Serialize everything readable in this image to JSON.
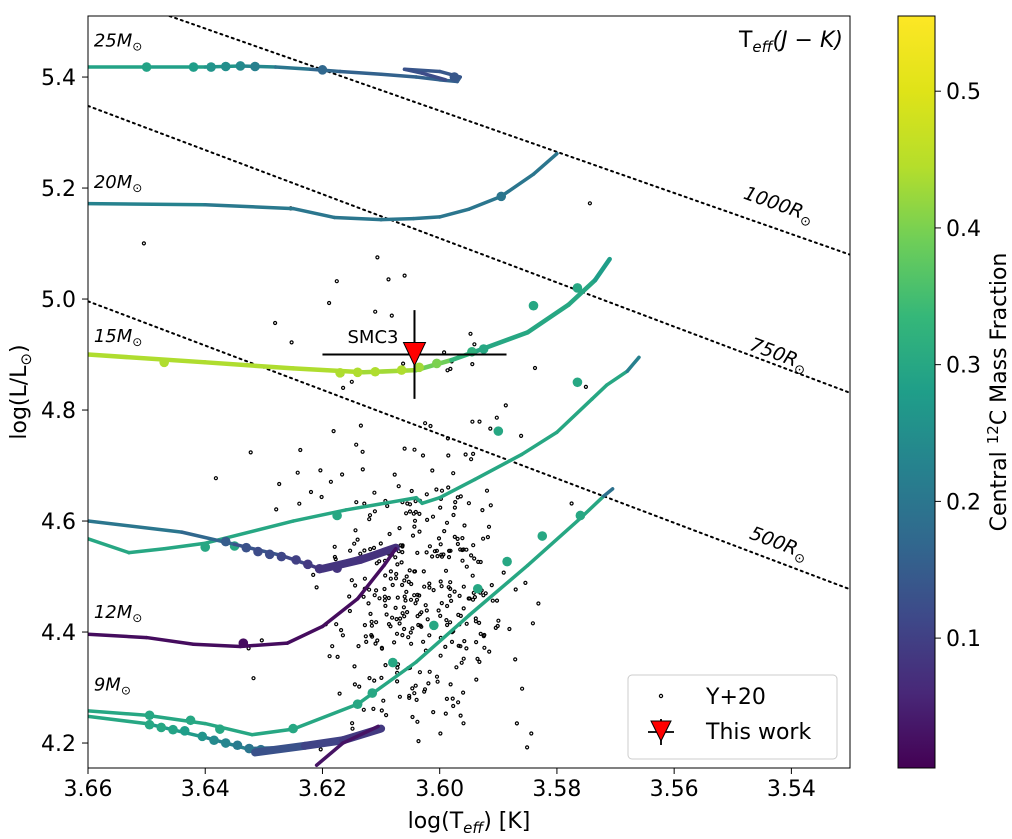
{
  "chart_data": {
    "type": "line",
    "title": "",
    "corner_label": "T",
    "corner_label_sub": "eff",
    "corner_label_paren": "(J − K)",
    "xlabel_main": "log(T",
    "xlabel_sub": "eff",
    "xlabel_tail": ") [K]",
    "ylabel_main": "log(L/L",
    "ylabel_sun": "⊙",
    "ylabel_tail": ")",
    "xlim": [
      3.66,
      3.53
    ],
    "ylim": [
      4.155,
      5.51
    ],
    "x_ticks": [
      3.66,
      3.64,
      3.62,
      3.6,
      3.58,
      3.56,
      3.54
    ],
    "x_tick_labels": [
      "3.66",
      "3.64",
      "3.62",
      "3.60",
      "3.58",
      "3.56",
      "3.54"
    ],
    "y_ticks": [
      4.2,
      4.4,
      4.6,
      4.8,
      5.0,
      5.2,
      5.4
    ],
    "y_tick_labels": [
      "4.2",
      "4.4",
      "4.6",
      "4.8",
      "5.0",
      "5.2",
      "5.4"
    ],
    "colorbar": {
      "label_pre": "Central ",
      "label_sup": "12",
      "label_post": "C Mass Fraction",
      "range": [
        0.005,
        0.555
      ],
      "ticks": [
        0.1,
        0.2,
        0.3,
        0.4,
        0.5
      ],
      "tick_labels": [
        "0.1",
        "0.2",
        "0.3",
        "0.4",
        "0.5"
      ]
    },
    "radius_lines": [
      {
        "label": "1000R",
        "sun": "⊙",
        "points": [
          [
            3.6461,
            5.51
          ],
          [
            3.53,
            5.08
          ]
        ],
        "label_at": [
          3.5425,
          5.16
        ]
      },
      {
        "label": "750R",
        "sun": "⊙",
        "points": [
          [
            3.66,
            5.348
          ],
          [
            3.53,
            4.831
          ]
        ],
        "label_at": [
          3.5425,
          4.89
        ]
      },
      {
        "label": "500R",
        "sun": "⊙",
        "points": [
          [
            3.66,
            4.996
          ],
          [
            3.53,
            4.477
          ]
        ],
        "label_at": [
          3.5425,
          4.55
        ]
      }
    ],
    "mass_labels": [
      {
        "label": "25M",
        "sun": "⊙",
        "at": [
          3.659,
          5.455
        ]
      },
      {
        "label": "20M",
        "sun": "⊙",
        "at": [
          3.659,
          5.2
        ]
      },
      {
        "label": "15M",
        "sun": "⊙",
        "at": [
          3.659,
          4.923
        ]
      },
      {
        "label": "12M",
        "sun": "⊙",
        "at": [
          3.659,
          4.425
        ]
      },
      {
        "label": "9M",
        "sun": "⊙",
        "at": [
          3.659,
          4.295
        ]
      }
    ],
    "tracks": [
      {
        "name": "25Msun",
        "width": 3.5,
        "points": [
          [
            3.66,
            5.418,
            0.29
          ],
          [
            3.65,
            5.418,
            0.29
          ],
          [
            3.64,
            5.418,
            0.28
          ],
          [
            3.634,
            5.42,
            0.25
          ],
          [
            3.628,
            5.418,
            0.22
          ],
          [
            3.622,
            5.414,
            0.18
          ],
          [
            3.617,
            5.41,
            0.16
          ],
          [
            3.61,
            5.405,
            0.16
          ],
          [
            3.604,
            5.4,
            0.16
          ],
          [
            3.6,
            5.395,
            0.16
          ],
          [
            3.597,
            5.392,
            0.16
          ],
          [
            3.5965,
            5.4,
            0.14
          ],
          [
            3.6,
            5.41,
            0.14
          ],
          [
            3.606,
            5.414,
            0.14
          ],
          [
            3.603,
            5.407,
            0.12
          ],
          [
            3.599,
            5.395,
            0.12
          ]
        ],
        "markers": [
          [
            3.65,
            5.418,
            0.29
          ],
          [
            3.642,
            5.418,
            0.28
          ],
          [
            3.639,
            5.418,
            0.26
          ],
          [
            3.6365,
            5.419,
            0.25
          ],
          [
            3.634,
            5.42,
            0.24
          ],
          [
            3.6315,
            5.419,
            0.22
          ],
          [
            3.62,
            5.413,
            0.17
          ],
          [
            3.5975,
            5.4,
            0.14
          ]
        ]
      },
      {
        "name": "20Msun",
        "width": 3.5,
        "points": [
          [
            3.66,
            5.172,
            0.24
          ],
          [
            3.64,
            5.17,
            0.21
          ],
          [
            3.625,
            5.163,
            0.2
          ],
          [
            3.618,
            5.147,
            0.2
          ],
          [
            3.61,
            5.143,
            0.2
          ],
          [
            3.6045,
            5.145,
            0.2
          ],
          [
            3.6,
            5.148,
            0.2
          ],
          [
            3.595,
            5.162,
            0.2
          ],
          [
            3.5895,
            5.185,
            0.2
          ],
          [
            3.584,
            5.225,
            0.2
          ],
          [
            3.58,
            5.262,
            0.2
          ]
        ],
        "markers": [
          [
            3.5895,
            5.185,
            0.2
          ]
        ]
      },
      {
        "name": "15Msun",
        "width": 4.5,
        "points": [
          [
            3.66,
            4.9,
            0.44
          ],
          [
            3.64,
            4.886,
            0.44
          ],
          [
            3.625,
            4.875,
            0.44
          ],
          [
            3.613,
            4.868,
            0.44
          ],
          [
            3.604,
            4.872,
            0.42
          ],
          [
            3.598,
            4.89,
            0.36
          ],
          [
            3.594,
            4.905,
            0.3
          ],
          [
            3.585,
            4.94,
            0.3
          ],
          [
            3.578,
            4.99,
            0.3
          ],
          [
            3.5735,
            5.034,
            0.3
          ],
          [
            3.571,
            5.072,
            0.26
          ]
        ],
        "markers": [
          [
            3.647,
            4.886,
            0.44
          ],
          [
            3.617,
            4.867,
            0.44
          ],
          [
            3.614,
            4.868,
            0.44
          ],
          [
            3.611,
            4.869,
            0.44
          ],
          [
            3.6065,
            4.872,
            0.44
          ],
          [
            3.6035,
            4.877,
            0.43
          ],
          [
            3.6005,
            4.884,
            0.4
          ],
          [
            3.5945,
            4.905,
            0.32
          ],
          [
            3.5925,
            4.91,
            0.3
          ],
          [
            3.584,
            4.988,
            0.3
          ],
          [
            3.5765,
            5.02,
            0.3
          ]
        ]
      },
      {
        "name": "12Msun_upper",
        "width": 3.5,
        "points": [
          [
            3.66,
            4.568,
            0.3
          ],
          [
            3.653,
            4.543,
            0.3
          ],
          [
            3.647,
            4.55,
            0.3
          ],
          [
            3.64,
            4.56,
            0.3
          ],
          [
            3.625,
            4.6,
            0.3
          ],
          [
            3.616,
            4.62,
            0.3
          ],
          [
            3.604,
            4.642,
            0.3
          ],
          [
            3.603,
            4.632,
            0.3
          ],
          [
            3.6,
            4.642,
            0.3
          ],
          [
            3.594,
            4.675,
            0.3
          ],
          [
            3.586,
            4.72,
            0.3
          ],
          [
            3.58,
            4.76,
            0.3
          ],
          [
            3.574,
            4.82,
            0.3
          ],
          [
            3.5715,
            4.845,
            0.3
          ],
          [
            3.568,
            4.87,
            0.3
          ],
          [
            3.566,
            4.895,
            0.14
          ]
        ],
        "markers": [
          [
            3.64,
            4.553,
            0.3
          ],
          [
            3.635,
            4.555,
            0.3
          ],
          [
            3.6175,
            4.61,
            0.3
          ],
          [
            3.59,
            4.762,
            0.3
          ],
          [
            3.5765,
            4.85,
            0.3
          ]
        ]
      },
      {
        "name": "12Msun_lower",
        "width": 3.5,
        "points": [
          [
            3.66,
            4.6,
            0.21
          ],
          [
            3.644,
            4.58,
            0.19
          ],
          [
            3.635,
            4.558,
            0.15
          ],
          [
            3.627,
            4.538,
            0.12
          ],
          [
            3.622,
            4.52,
            0.1
          ],
          [
            3.6205,
            4.514,
            0.08
          ],
          [
            3.613,
            4.53,
            0.07
          ],
          [
            3.6075,
            4.553,
            0.06
          ],
          [
            3.6185,
            4.52,
            0.07
          ]
        ],
        "markers": [
          [
            3.6365,
            4.563,
            0.15
          ],
          [
            3.633,
            4.552,
            0.13
          ],
          [
            3.631,
            4.545,
            0.12
          ],
          [
            3.629,
            4.54,
            0.12
          ],
          [
            3.627,
            4.536,
            0.11
          ],
          [
            3.6245,
            4.53,
            0.1
          ],
          [
            3.6225,
            4.522,
            0.09
          ],
          [
            3.6205,
            4.514,
            0.08
          ],
          [
            3.6175,
            4.515,
            0.08
          ]
        ]
      },
      {
        "name": "12Msun_thick",
        "width": 8,
        "points": [
          [
            3.62,
            4.514,
            0.08
          ],
          [
            3.6135,
            4.53,
            0.08
          ],
          [
            3.6075,
            4.552,
            0.07
          ]
        ],
        "markers": []
      },
      {
        "name": "9Msun_branch",
        "width": 3.5,
        "points": [
          [
            3.66,
            4.396,
            0.02
          ],
          [
            3.65,
            4.39,
            0.02
          ],
          [
            3.642,
            4.378,
            0.02
          ],
          [
            3.634,
            4.374,
            0.02
          ],
          [
            3.626,
            4.38,
            0.02
          ],
          [
            3.62,
            4.41,
            0.02
          ],
          [
            3.614,
            4.46,
            0.02
          ],
          [
            3.6095,
            4.52,
            0.02
          ],
          [
            3.6075,
            4.55,
            0.03
          ]
        ],
        "markers": [
          [
            3.6335,
            4.38,
            0.02
          ]
        ]
      },
      {
        "name": "9Msun_upper",
        "width": 3.5,
        "points": [
          [
            3.66,
            4.258,
            0.3
          ],
          [
            3.65,
            4.25,
            0.3
          ],
          [
            3.64,
            4.235,
            0.3
          ],
          [
            3.632,
            4.215,
            0.3
          ],
          [
            3.625,
            4.225,
            0.3
          ],
          [
            3.614,
            4.27,
            0.3
          ],
          [
            3.604,
            4.346,
            0.3
          ],
          [
            3.595,
            4.43,
            0.3
          ],
          [
            3.585,
            4.52,
            0.3
          ],
          [
            3.576,
            4.605,
            0.3
          ],
          [
            3.572,
            4.645,
            0.3
          ],
          [
            3.5705,
            4.658,
            0.08
          ]
        ],
        "markers": [
          [
            3.6495,
            4.25,
            0.3
          ],
          [
            3.6425,
            4.241,
            0.3
          ],
          [
            3.6375,
            4.225,
            0.3
          ],
          [
            3.625,
            4.226,
            0.3
          ],
          [
            3.614,
            4.27,
            0.3
          ],
          [
            3.6115,
            4.29,
            0.3
          ],
          [
            3.608,
            4.345,
            0.3
          ],
          [
            3.601,
            4.412,
            0.3
          ],
          [
            3.5935,
            4.478,
            0.3
          ],
          [
            3.5885,
            4.527,
            0.3
          ],
          [
            3.5825,
            4.573,
            0.3
          ],
          [
            3.576,
            4.61,
            0.3
          ]
        ]
      },
      {
        "name": "9Msun_lower",
        "width": 3.5,
        "points": [
          [
            3.66,
            4.248,
            0.3
          ],
          [
            3.65,
            4.235,
            0.3
          ],
          [
            3.64,
            4.21,
            0.25
          ],
          [
            3.633,
            4.19,
            0.2
          ],
          [
            3.626,
            4.192,
            0.16
          ],
          [
            3.6195,
            4.2,
            0.12
          ],
          [
            3.614,
            4.215,
            0.1
          ],
          [
            3.6105,
            4.228,
            0.08
          ]
        ],
        "markers": [
          [
            3.6495,
            4.233,
            0.3
          ],
          [
            3.6475,
            4.228,
            0.3
          ],
          [
            3.6455,
            4.224,
            0.29
          ],
          [
            3.6435,
            4.222,
            0.28
          ],
          [
            3.6405,
            4.212,
            0.26
          ],
          [
            3.6385,
            4.205,
            0.24
          ],
          [
            3.6365,
            4.2,
            0.23
          ],
          [
            3.6345,
            4.196,
            0.21
          ],
          [
            3.6325,
            4.19,
            0.2
          ],
          [
            3.6305,
            4.188,
            0.19
          ]
        ]
      },
      {
        "name": "9Msun_thick",
        "width": 8,
        "points": [
          [
            3.6315,
            4.183,
            0.15
          ],
          [
            3.623,
            4.195,
            0.11
          ],
          [
            3.6165,
            4.205,
            0.1
          ],
          [
            3.61,
            4.226,
            0.08
          ]
        ],
        "markers": []
      },
      {
        "name": "9Msun_stub",
        "width": 3.5,
        "points": [
          [
            3.621,
            4.16,
            0.03
          ],
          [
            3.6165,
            4.2,
            0.03
          ],
          [
            3.6105,
            4.23,
            0.03
          ]
        ],
        "markers": []
      }
    ],
    "scatter_series": {
      "name": "Y+20",
      "count": 400
    },
    "highlight_point": {
      "name": "This work",
      "label": "SMC3",
      "x": 3.6043,
      "y": 4.9,
      "xerr": 0.0157,
      "yerr": 0.08
    },
    "legend": {
      "position": "lower-right",
      "entries": [
        "Y+20",
        "This work"
      ]
    }
  }
}
